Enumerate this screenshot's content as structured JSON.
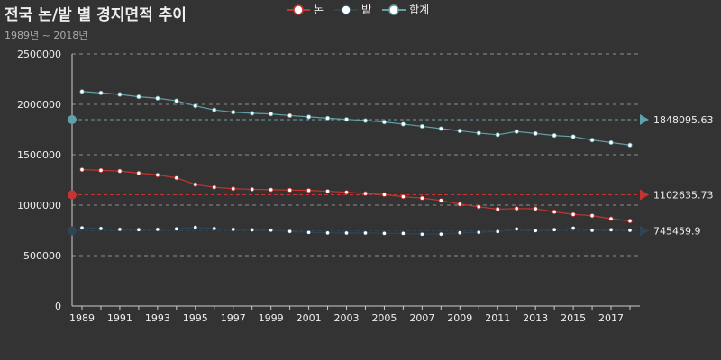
{
  "header": {
    "title": "전국 논/밭 별 경지면적 추이",
    "subtitle": "1989년 ~ 2018년"
  },
  "colors": {
    "논": "#c23531",
    "밭": "#2f4554",
    "합계": "#61a0a8",
    "background": "#333333"
  },
  "chart_data": {
    "type": "line",
    "title": "전국 논/밭 별 경지면적 추이",
    "subtitle": "1989년 ~ 2018년",
    "x": [
      1989,
      1990,
      1991,
      1992,
      1993,
      1994,
      1995,
      1996,
      1997,
      1998,
      1999,
      2000,
      2001,
      2002,
      2003,
      2004,
      2005,
      2006,
      2007,
      2008,
      2009,
      2010,
      2011,
      2012,
      2013,
      2014,
      2015,
      2016,
      2017,
      2018
    ],
    "x_tick_labels": [
      "1989",
      "1991",
      "1993",
      "1995",
      "1997",
      "1999",
      "2001",
      "2003",
      "2005",
      "2007",
      "2009",
      "2011",
      "2013",
      "2015",
      "2017"
    ],
    "y_tick_labels": [
      "0",
      "500000",
      "1000000",
      "1500000",
      "2000000",
      "2500000"
    ],
    "ylim": [
      0,
      2500000
    ],
    "grid": "horizontal dashed",
    "legend_position": "top-center",
    "series": [
      {
        "name": "논",
        "color": "#c23531",
        "values": [
          1352000,
          1345000,
          1338000,
          1318000,
          1300000,
          1270000,
          1205000,
          1177000,
          1163000,
          1157000,
          1153000,
          1149000,
          1146000,
          1138000,
          1127000,
          1115000,
          1105000,
          1084000,
          1070000,
          1046000,
          1010000,
          984000,
          960000,
          966000,
          964000,
          934000,
          908000,
          896000,
          865000,
          844000
        ],
        "mean_value": 1102635.73,
        "mean_label": "1102635.73"
      },
      {
        "name": "밭",
        "color": "#2f4554",
        "values": [
          775000,
          768000,
          760000,
          757000,
          760000,
          765000,
          780000,
          768000,
          760000,
          755000,
          752000,
          740000,
          730000,
          725000,
          724000,
          724000,
          720000,
          720000,
          712000,
          713000,
          726000,
          731000,
          738000,
          764000,
          747000,
          757000,
          772000,
          750000,
          756000,
          751000
        ],
        "mean_value": 745459.9,
        "mean_label": "745459.9"
      },
      {
        "name": "합계",
        "color": "#61a0a8",
        "values": [
          2127000,
          2113000,
          2098000,
          2075000,
          2060000,
          2035000,
          1985000,
          1945000,
          1923000,
          1912000,
          1905000,
          1889000,
          1876000,
          1863000,
          1851000,
          1839000,
          1825000,
          1804000,
          1782000,
          1759000,
          1737000,
          1715000,
          1698000,
          1730000,
          1711000,
          1691000,
          1679000,
          1646000,
          1621000,
          1596000
        ],
        "mean_value": 1848095.63,
        "mean_label": "1848095.63"
      }
    ]
  }
}
